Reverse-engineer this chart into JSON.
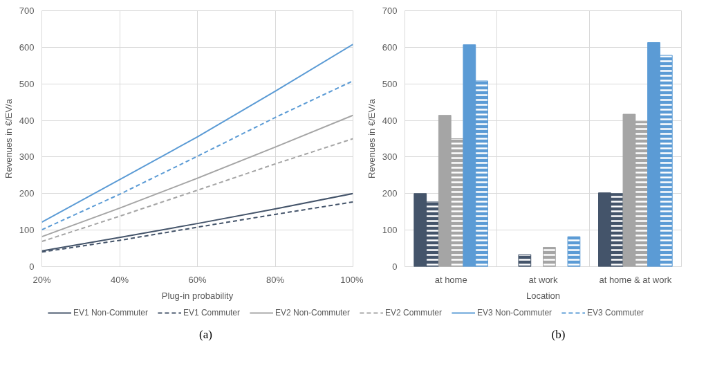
{
  "chart_data": [
    {
      "type": "line",
      "xlabel": "Plug-in probability",
      "ylabel": "Revenues in €/EV/a",
      "x": [
        20,
        40,
        60,
        80,
        100
      ],
      "xlim": [
        20,
        100
      ],
      "xticks": [
        {
          "value": 20,
          "label": "20%"
        },
        {
          "value": 40,
          "label": "40%"
        },
        {
          "value": 60,
          "label": "60%"
        },
        {
          "value": 80,
          "label": "80%"
        },
        {
          "value": 100,
          "label": "100%"
        }
      ],
      "ylim": [
        0,
        700
      ],
      "yticks": [
        0,
        100,
        200,
        300,
        400,
        500,
        600,
        700
      ],
      "grid": true,
      "legend": "bottom",
      "marker": "none",
      "annotations": [
        "(a)"
      ],
      "series": [
        {
          "name": "EV1 Non-Commuter",
          "color": "#44546a",
          "line_style": "solid",
          "values": [
            43,
            80,
            118,
            158,
            200
          ]
        },
        {
          "name": "EV1 Commuter",
          "color": "#44546a",
          "line_style": "dashed",
          "values": [
            40,
            72,
            108,
            143,
            177
          ]
        },
        {
          "name": "EV2 Non-Commuter",
          "color": "#a5a5a5",
          "line_style": "solid",
          "values": [
            82,
            160,
            242,
            327,
            414
          ]
        },
        {
          "name": "EV2 Commuter",
          "color": "#a5a5a5",
          "line_style": "dashed",
          "values": [
            69,
            138,
            209,
            281,
            350
          ]
        },
        {
          "name": "EV3 Non-Commuter",
          "color": "#5b9bd5",
          "line_style": "solid",
          "values": [
            122,
            238,
            355,
            480,
            608
          ]
        },
        {
          "name": "EV3 Commuter",
          "color": "#5b9bd5",
          "line_style": "dashed",
          "values": [
            101,
            198,
            302,
            408,
            508
          ]
        }
      ]
    },
    {
      "type": "bar",
      "xlabel": "Location",
      "ylabel": "Revenues in €/EV/a",
      "categories": [
        "at home",
        "at work",
        "at home & at work"
      ],
      "ylim": [
        0,
        700
      ],
      "yticks": [
        0,
        100,
        200,
        300,
        400,
        500,
        600,
        700
      ],
      "grid": true,
      "annotations": [
        "(b)"
      ],
      "series": [
        {
          "color": "#44546a",
          "line_style": "solid",
          "values": [
            200,
            null,
            202
          ]
        },
        {
          "color": "#44546a",
          "line_style": "dashed",
          "values": [
            177,
            33,
            200
          ]
        },
        {
          "color": "#a5a5a5",
          "line_style": "solid",
          "values": [
            414,
            null,
            417
          ]
        },
        {
          "color": "#a5a5a5",
          "line_style": "dashed",
          "values": [
            350,
            53,
            397
          ]
        },
        {
          "color": "#5b9bd5",
          "line_style": "solid",
          "values": [
            607,
            null,
            613
          ]
        },
        {
          "color": "#5b9bd5",
          "line_style": "dashed",
          "values": [
            508,
            82,
            578
          ]
        }
      ]
    }
  ]
}
